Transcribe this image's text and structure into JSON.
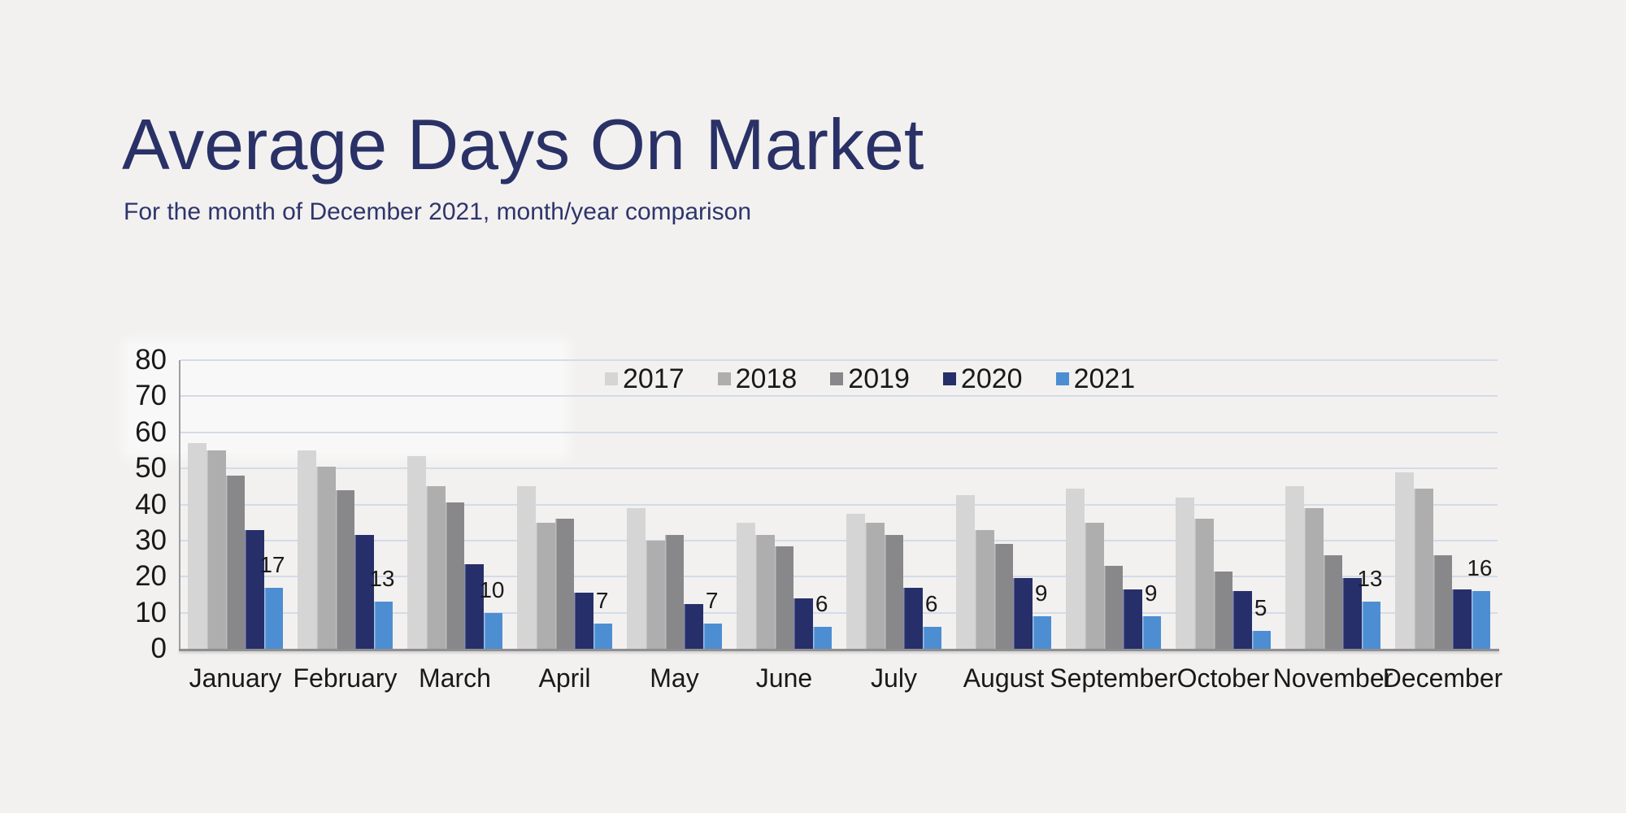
{
  "page": {
    "background": "#f2f1f0"
  },
  "header": {
    "title": "Average Days On Market",
    "subtitle": "For the month of December 2021, month/year comparison"
  },
  "colors": {
    "title_text": "#2a3166",
    "subtitle_text": "#2e356b",
    "axis_text": "#191919",
    "gridline": "#d4dbe9",
    "axis_line": "#8f8f91",
    "data_label_text": "#1a1a1a"
  },
  "chart_data": {
    "type": "bar",
    "title": "Average Days On Market",
    "subtitle": "For the month of December 2021, month/year comparison",
    "categories": [
      "January",
      "February",
      "March",
      "April",
      "May",
      "June",
      "July",
      "August",
      "September",
      "October",
      "November",
      "December"
    ],
    "series": [
      {
        "name": "2017",
        "color": "#d5d5d5",
        "values": [
          57,
          55,
          53.5,
          45,
          39,
          35,
          37.5,
          42.5,
          44.5,
          42,
          45,
          49
        ]
      },
      {
        "name": "2018",
        "color": "#aeaeae",
        "values": [
          55,
          50.5,
          45,
          35,
          30,
          31.5,
          35,
          33,
          35,
          36,
          39,
          44.5
        ]
      },
      {
        "name": "2019",
        "color": "#88888a",
        "values": [
          48,
          44,
          40.5,
          36,
          31.5,
          28.5,
          31.5,
          29,
          23,
          21.5,
          26,
          26
        ]
      },
      {
        "name": "2020",
        "color": "#262f69",
        "values": [
          33,
          31.5,
          23.5,
          15.5,
          12.5,
          14,
          17,
          19.5,
          16.5,
          16,
          19.5,
          16.5
        ]
      },
      {
        "name": "2021",
        "color": "#4d8ed3",
        "values": [
          17,
          13,
          10,
          7,
          7,
          6,
          6,
          9,
          9,
          5,
          13,
          16
        ],
        "show_data_labels": true,
        "data_labels": [
          "17",
          "13",
          "10",
          "7",
          "7",
          "6",
          "6",
          "9",
          "9",
          "5",
          "13",
          "16"
        ]
      }
    ],
    "ylim": [
      0,
      80
    ],
    "yticks": [
      0,
      10,
      20,
      30,
      40,
      50,
      60,
      70,
      80
    ],
    "grid": "horizontal",
    "legend_position": "top-center-inside",
    "legend_entries": [
      "2017",
      "2018",
      "2019",
      "2020",
      "2021"
    ]
  }
}
